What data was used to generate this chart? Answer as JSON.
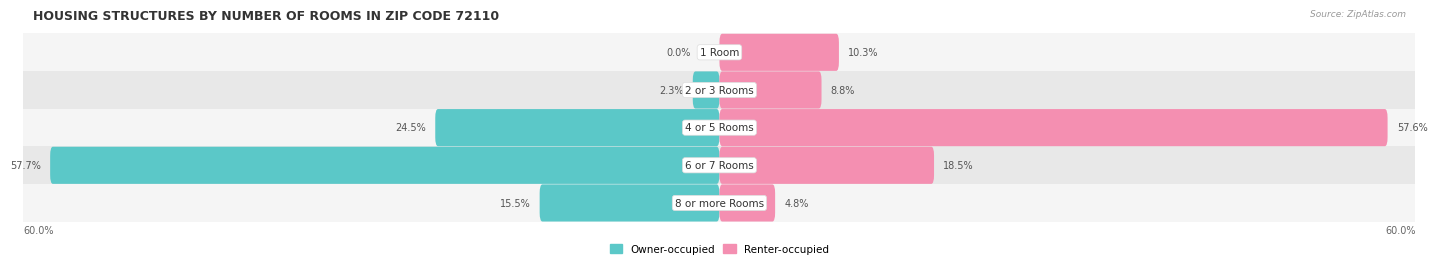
{
  "title": "HOUSING STRUCTURES BY NUMBER OF ROOMS IN ZIP CODE 72110",
  "source": "Source: ZipAtlas.com",
  "categories": [
    "1 Room",
    "2 or 3 Rooms",
    "4 or 5 Rooms",
    "6 or 7 Rooms",
    "8 or more Rooms"
  ],
  "owner_values": [
    0.0,
    2.3,
    24.5,
    57.7,
    15.5
  ],
  "renter_values": [
    10.3,
    8.8,
    57.6,
    18.5,
    4.8
  ],
  "max_value": 60.0,
  "owner_color": "#5bc8c8",
  "renter_color": "#f48fb1",
  "title_fontsize": 9,
  "label_fontsize": 7,
  "category_fontsize": 7.5,
  "axis_label_fontsize": 7,
  "legend_fontsize": 7.5,
  "fig_bg_color": "#ffffff",
  "bar_height": 0.52,
  "x_axis_label_left": "60.0%",
  "x_axis_label_right": "60.0%",
  "row_colors": [
    "#f5f5f5",
    "#e8e8e8"
  ]
}
